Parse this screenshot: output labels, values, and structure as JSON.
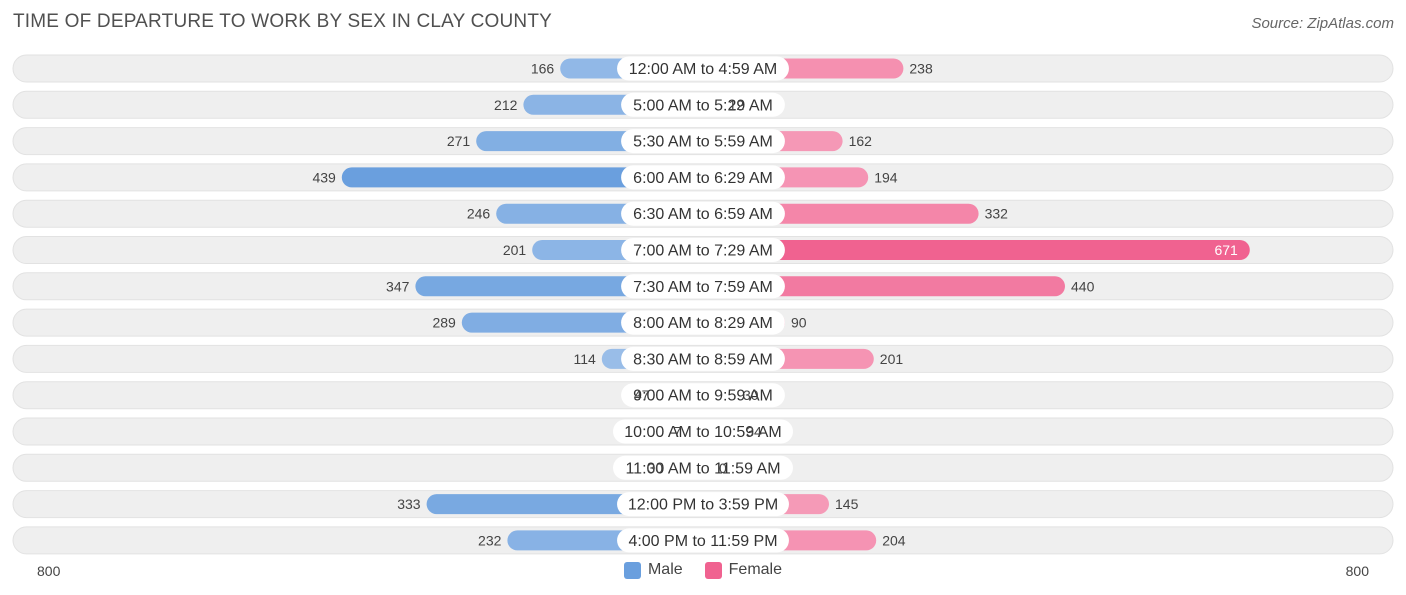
{
  "title": "TIME OF DEPARTURE TO WORK BY SEX IN CLAY COUNTY",
  "source": "Source: ZipAtlas.com",
  "legend": {
    "male": "Male",
    "female": "Female"
  },
  "colors": {
    "male_light": "#a9c8ec",
    "male_dark": "#6a9fde",
    "female_light": "#f7a9c2",
    "female_dark": "#f06290",
    "row_bg": "#efefef"
  },
  "chart_data": {
    "type": "bar",
    "orientation": "horizontal-diverging",
    "title": "TIME OF DEPARTURE TO WORK BY SEX IN CLAY COUNTY",
    "categories": [
      "12:00 AM to 4:59 AM",
      "5:00 AM to 5:29 AM",
      "5:30 AM to 5:59 AM",
      "6:00 AM to 6:29 AM",
      "6:30 AM to 6:59 AM",
      "7:00 AM to 7:29 AM",
      "7:30 AM to 7:59 AM",
      "8:00 AM to 8:29 AM",
      "8:30 AM to 8:59 AM",
      "9:00 AM to 9:59 AM",
      "10:00 AM to 10:59 AM",
      "11:00 AM to 11:59 AM",
      "12:00 PM to 3:59 PM",
      "4:00 PM to 11:59 PM"
    ],
    "series": [
      {
        "name": "Male",
        "values": [
          166,
          212,
          271,
          439,
          246,
          201,
          347,
          289,
          114,
          47,
          7,
          30,
          333,
          232
        ]
      },
      {
        "name": "Female",
        "values": [
          238,
          12,
          162,
          194,
          332,
          671,
          440,
          90,
          201,
          30,
          34,
          0,
          145,
          204
        ]
      }
    ],
    "xlim": [
      -800,
      800
    ],
    "axis_ticks": {
      "left": "800",
      "right": "800"
    },
    "legend_position": "bottom-center",
    "grid": false
  }
}
